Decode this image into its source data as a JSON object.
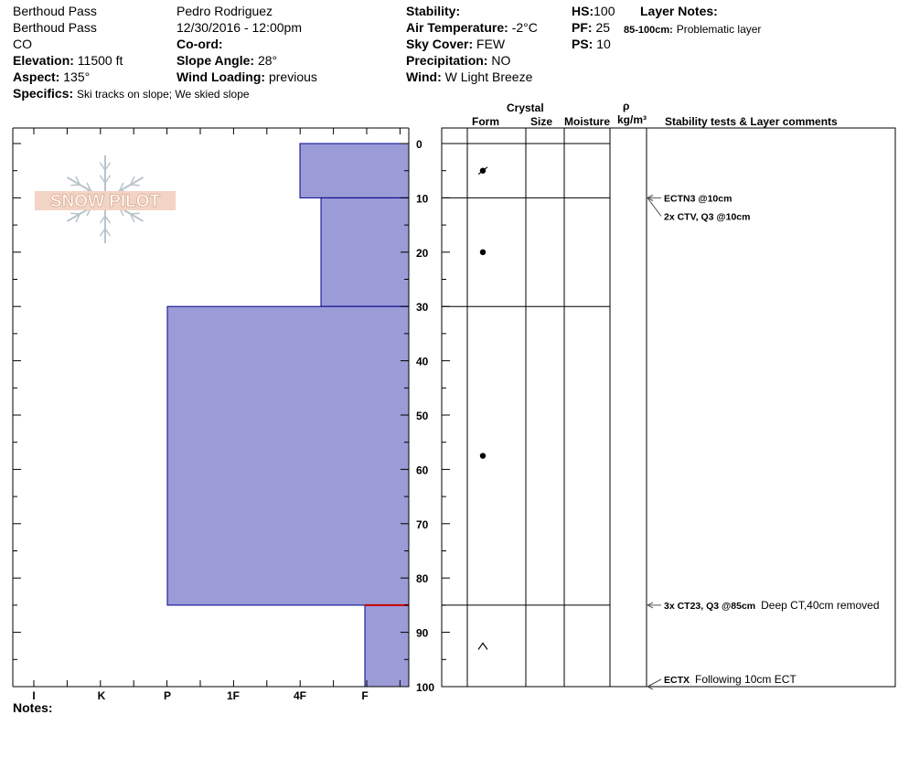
{
  "header": {
    "location": "Berthoud Pass",
    "site": "Berthoud Pass",
    "state": "CO",
    "elevation_label": "Elevation:",
    "elevation": "11500 ft",
    "aspect_label": "Aspect:",
    "aspect": "135°",
    "specifics_label": "Specifics:",
    "specifics": "Ski tracks on slope; We skied slope",
    "observer": "Pedro Rodriguez",
    "datetime": "12/30/2016 - 12:00pm",
    "coord_label": "Co-ord:",
    "slope_label": "Slope Angle:",
    "slope": "28°",
    "wind_loading_label": "Wind Loading:",
    "wind_loading": "previous",
    "stability_label": "Stability:",
    "air_temp_label": "Air Temperature:",
    "air_temp": "-2°C",
    "sky_label": "Sky Cover:",
    "sky": "FEW",
    "precip_label": "Precipitation:",
    "precip": "NO",
    "wind_label": "Wind:",
    "wind": "W Light Breeze",
    "hs_label": "HS:",
    "hs": "100",
    "pf_label": "PF:",
    "pf": "25",
    "ps_label": "PS:",
    "ps": "10",
    "layer_notes_label": "Layer Notes:",
    "layer_note_range": "85-100cm:",
    "layer_note_text": "Problematic layer"
  },
  "columns": {
    "crystal": "Crystal",
    "form": "Form",
    "size": "Size",
    "moisture": "Moisture",
    "rho": "ρ",
    "density_unit": "kg/m³",
    "stability": "Stability tests & Layer comments"
  },
  "notes_label": "Notes:",
  "logo_text": "SNOW PILOT",
  "colors": {
    "layer_fill": "#9b9bd7",
    "layer_edge": "#00008b",
    "problem_line": "#cc0000"
  },
  "chart_data": {
    "type": "bar",
    "orientation": "horizontal",
    "x_categories": [
      "I",
      "K",
      "P",
      "1F",
      "4F",
      "F"
    ],
    "x_axis_range": [
      "I",
      "F"
    ],
    "y_ticks": [
      0,
      10,
      20,
      30,
      40,
      50,
      60,
      70,
      80,
      90,
      100
    ],
    "ylim": [
      0,
      100
    ],
    "y_inverted": true,
    "layers": [
      {
        "top": 0,
        "bottom": 10,
        "hardness": "4F"
      },
      {
        "top": 10,
        "bottom": 30,
        "hardness": "4F-F"
      },
      {
        "top": 30,
        "bottom": 85,
        "hardness": "P"
      },
      {
        "top": 85,
        "bottom": 100,
        "hardness": "F"
      }
    ],
    "problem_layer_depth": 85,
    "grain_forms": [
      {
        "depth": 5,
        "form": "decomposing"
      },
      {
        "depth": 20,
        "form": "rounded"
      },
      {
        "depth": 57.5,
        "form": "rounded"
      },
      {
        "depth": 92.5,
        "form": "depth hoar"
      }
    ],
    "tests": [
      {
        "depth": 10,
        "label": "ECTN3 @10cm",
        "comment": ""
      },
      {
        "depth": 10,
        "label": "2x CTV, Q3 @10cm",
        "comment": ""
      },
      {
        "depth": 85,
        "label": "3x CT23, Q3 @85cm",
        "comment": "Deep CT,40cm removed"
      },
      {
        "depth": 100,
        "label": "ECTX",
        "comment": "Following 10cm ECT"
      }
    ]
  }
}
